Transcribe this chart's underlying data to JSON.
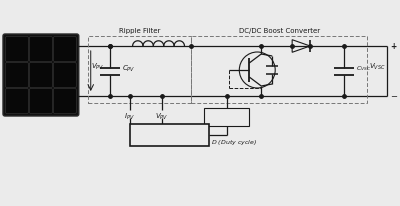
{
  "bg_color": "#ebebeb",
  "line_color": "#1a1a1a",
  "panel_dark": "#0d0d0d",
  "panel_cell": "#111111",
  "dashed_color": "#555555"
}
